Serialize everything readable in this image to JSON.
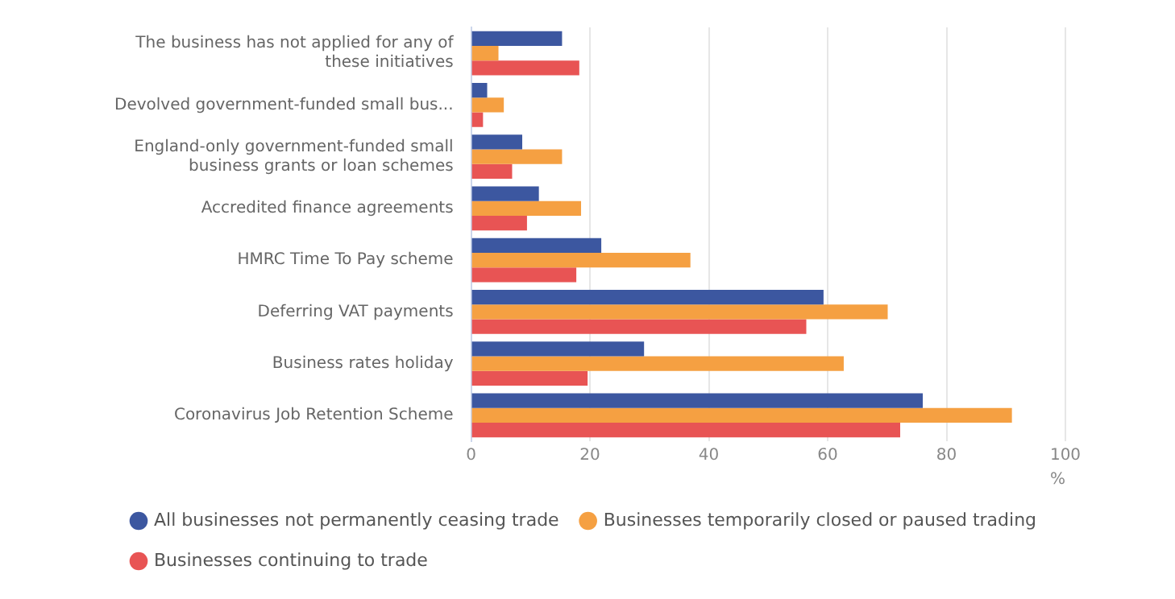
{
  "chart_data": {
    "type": "bar",
    "orientation": "horizontal",
    "xlabel": "%",
    "categories": [
      "The business has not applied for any of these initiatives",
      "Devolved government-funded small bus...",
      "England-only government-funded small business grants or loan schemes",
      "Accredited finance agreements",
      "HMRC Time To Pay scheme",
      "Deferring VAT payments",
      "Business rates holiday",
      "Coronavirus Job Retention Scheme"
    ],
    "series": [
      {
        "name": "All businesses not permanently ceasing trade",
        "color": "#3c57a0",
        "values": [
          15.3,
          2.7,
          8.6,
          11.4,
          21.9,
          59.3,
          29.1,
          76.0
        ]
      },
      {
        "name": "Businesses temporarily closed or paused trading",
        "color": "#f5a042",
        "values": [
          4.6,
          5.5,
          15.3,
          18.5,
          36.9,
          70.1,
          62.7,
          91.0
        ]
      },
      {
        "name": "Businesses continuing to trade",
        "color": "#e85454",
        "values": [
          18.2,
          2.0,
          6.9,
          9.4,
          17.7,
          56.4,
          19.6,
          72.2
        ]
      }
    ],
    "xlim": [
      0,
      100
    ],
    "xticks": [
      0,
      20,
      40,
      60,
      80,
      100
    ],
    "grid": "x",
    "legend": "bottom"
  }
}
